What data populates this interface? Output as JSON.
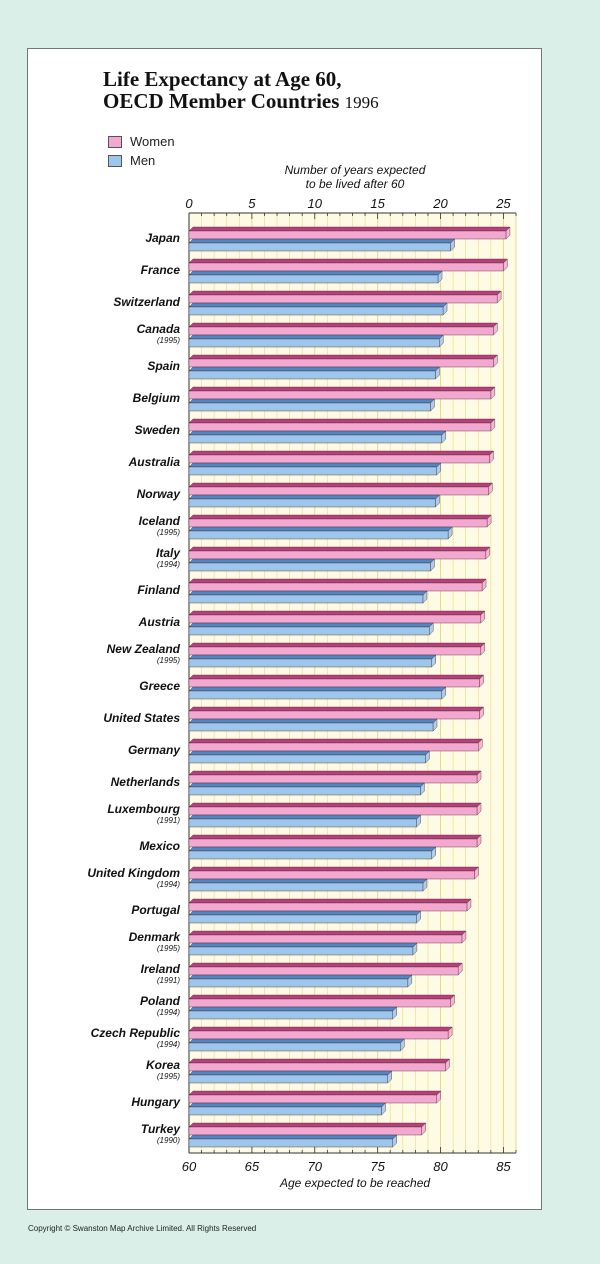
{
  "page": {
    "copyright": "Copyright © Swanston Map Archive Limited. All Rights Reserved"
  },
  "colors": {
    "women": "#f3a9cf",
    "women_top": "#b8407a",
    "men": "#9ec6ea",
    "men_top": "#4f87c2",
    "plot_bg": "#fdfbe3",
    "grid": "#e7d98a",
    "background": "#d9efe8"
  },
  "chart_data": {
    "type": "bar",
    "orientation": "horizontal",
    "title_line1": "Life Expectancy at Age 60,",
    "title_line2": "OECD Member Countries",
    "title_year": "1996",
    "top_axis_label": "Number of years expected to be lived after 60",
    "top_axis_label_line1": "Number of years expected",
    "top_axis_label_line2": "to be lived after 60",
    "top_ticks": [
      "0",
      "5",
      "10",
      "15",
      "20",
      "25"
    ],
    "bottom_axis_label": "Age expected to be reached",
    "bottom_ticks": [
      "60",
      "65",
      "70",
      "75",
      "80",
      "85"
    ],
    "xlim": [
      60,
      86
    ],
    "grid": true,
    "legend_placement": "top-left",
    "series": [
      {
        "name": "Women"
      },
      {
        "name": "Men"
      }
    ],
    "countries": [
      {
        "name": "Japan",
        "note": "",
        "women": 85.2,
        "men": 80.8
      },
      {
        "name": "France",
        "note": "",
        "women": 85.0,
        "men": 79.8
      },
      {
        "name": "Switzerland",
        "note": "",
        "women": 84.5,
        "men": 80.2
      },
      {
        "name": "Canada",
        "note": "(1995)",
        "women": 84.2,
        "men": 79.9
      },
      {
        "name": "Spain",
        "note": "",
        "women": 84.2,
        "men": 79.6
      },
      {
        "name": "Belgium",
        "note": "",
        "women": 84.0,
        "men": 79.2
      },
      {
        "name": "Sweden",
        "note": "",
        "women": 84.0,
        "men": 80.1
      },
      {
        "name": "Australia",
        "note": "",
        "women": 83.9,
        "men": 79.7
      },
      {
        "name": "Norway",
        "note": "",
        "women": 83.8,
        "men": 79.6
      },
      {
        "name": "Iceland",
        "note": "(1995)",
        "women": 83.7,
        "men": 80.6
      },
      {
        "name": "Italy",
        "note": "(1994)",
        "women": 83.6,
        "men": 79.2
      },
      {
        "name": "Finland",
        "note": "",
        "women": 83.3,
        "men": 78.6
      },
      {
        "name": "Austria",
        "note": "",
        "women": 83.2,
        "men": 79.1
      },
      {
        "name": "New Zealand",
        "note": "(1995)",
        "women": 83.2,
        "men": 79.3
      },
      {
        "name": "Greece",
        "note": "",
        "women": 83.1,
        "men": 80.1
      },
      {
        "name": "United States",
        "note": "",
        "women": 83.1,
        "men": 79.4
      },
      {
        "name": "Germany",
        "note": "",
        "women": 83.0,
        "men": 78.8
      },
      {
        "name": "Netherlands",
        "note": "",
        "women": 82.9,
        "men": 78.4
      },
      {
        "name": "Luxembourg",
        "note": "(1991)",
        "women": 82.9,
        "men": 78.1
      },
      {
        "name": "Mexico",
        "note": "",
        "women": 82.9,
        "men": 79.3
      },
      {
        "name": "United Kingdom",
        "note": "(1994)",
        "women": 82.7,
        "men": 78.6
      },
      {
        "name": "Portugal",
        "note": "",
        "women": 82.1,
        "men": 78.1
      },
      {
        "name": "Denmark",
        "note": "(1995)",
        "women": 81.7,
        "men": 77.8
      },
      {
        "name": "Ireland",
        "note": "(1991)",
        "women": 81.4,
        "men": 77.4
      },
      {
        "name": "Poland",
        "note": "(1994)",
        "women": 80.8,
        "men": 76.2
      },
      {
        "name": "Czech Republic",
        "note": "(1994)",
        "women": 80.6,
        "men": 76.8
      },
      {
        "name": "Korea",
        "note": "(1995)",
        "women": 80.4,
        "men": 75.8
      },
      {
        "name": "Hungary",
        "note": "",
        "women": 79.7,
        "men": 75.3
      },
      {
        "name": "Turkey",
        "note": "(1990)",
        "women": 78.5,
        "men": 76.2
      }
    ]
  }
}
